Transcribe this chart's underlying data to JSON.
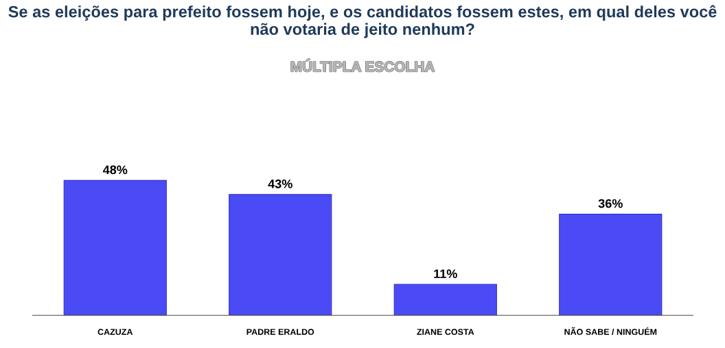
{
  "chart_data": {
    "type": "bar",
    "title": "Se as eleições para prefeito fossem hoje, e os candidatos fossem estes, em qual deles você não votaria de jeito nenhum?",
    "subtitle": "MÚLTIPLA ESCOLHA",
    "categories": [
      "CAZUZA",
      "PADRE ERALDO",
      "ZIANE COSTA",
      "NÃO SABE / NINGUÉM"
    ],
    "values": [
      48,
      43,
      11,
      36
    ],
    "value_labels": [
      "48%",
      "43%",
      "11%",
      "36%"
    ],
    "color": "#4b4bf5",
    "grid": false,
    "legend": false
  }
}
